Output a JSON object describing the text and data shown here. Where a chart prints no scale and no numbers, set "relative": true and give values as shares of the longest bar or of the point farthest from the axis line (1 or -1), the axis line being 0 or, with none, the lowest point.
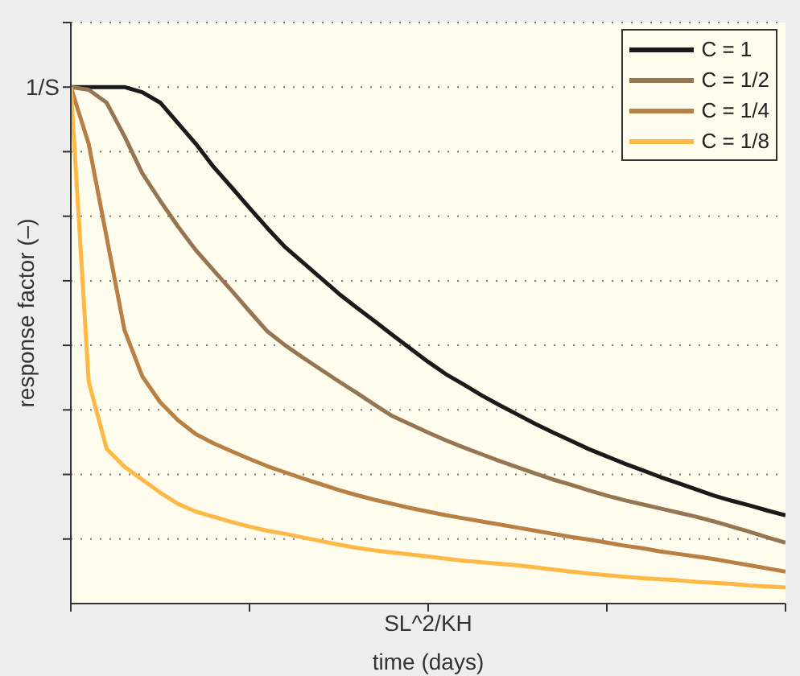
{
  "chart_data": {
    "type": "line",
    "relative": true,
    "xlabel": "time (days)",
    "ylabel": "response factor (–)",
    "annotations": [
      "1/S",
      "SL^2/KH"
    ],
    "grid": "y",
    "legend": "top right",
    "marker": "none",
    "line_style": "solid",
    "categories": [
      null,
      null,
      null,
      null,
      null,
      null,
      null,
      null,
      null,
      null,
      null,
      null,
      null,
      null,
      null,
      null,
      null,
      null,
      null,
      null,
      null,
      null,
      null,
      null,
      null,
      null,
      null,
      null,
      null,
      null,
      null,
      null,
      null,
      null,
      null,
      null,
      null,
      null,
      null,
      null,
      null
    ],
    "series": [
      {
        "name": "C = 1",
        "color": "#1a1a1a",
        "values": [
          1,
          1,
          1,
          1,
          0.99,
          0.97,
          0.93,
          0.89,
          0.845,
          0.806,
          0.766,
          0.727,
          0.69,
          0.66,
          0.63,
          0.6,
          0.573,
          0.547,
          0.52,
          0.494,
          0.468,
          0.444,
          0.424,
          0.403,
          0.384,
          0.366,
          0.348,
          0.331,
          0.315,
          0.299,
          0.285,
          0.271,
          0.258,
          0.245,
          0.233,
          0.221,
          0.209,
          0.199,
          0.19,
          0.18,
          0.171
        ]
      },
      {
        "name": "C = 1/2",
        "color": "#957552",
        "values": [
          1,
          0.995,
          0.97,
          0.905,
          0.833,
          0.78,
          0.73,
          0.684,
          0.645,
          0.606,
          0.566,
          0.527,
          0.5,
          0.476,
          0.453,
          0.43,
          0.408,
          0.385,
          0.363,
          0.347,
          0.331,
          0.316,
          0.302,
          0.289,
          0.276,
          0.264,
          0.252,
          0.24,
          0.23,
          0.219,
          0.209,
          0.2,
          0.192,
          0.184,
          0.176,
          0.168,
          0.159,
          0.149,
          0.139,
          0.128,
          0.118
        ]
      },
      {
        "name": "C = 1/4",
        "color": "#b88045",
        "values": [
          1,
          0.89,
          0.71,
          0.53,
          0.44,
          0.39,
          0.355,
          0.328,
          0.31,
          0.295,
          0.28,
          0.266,
          0.254,
          0.242,
          0.231,
          0.22,
          0.21,
          0.201,
          0.193,
          0.185,
          0.178,
          0.171,
          0.165,
          0.159,
          0.153,
          0.147,
          0.141,
          0.135,
          0.129,
          0.124,
          0.118,
          0.112,
          0.107,
          0.101,
          0.096,
          0.091,
          0.086,
          0.08,
          0.074,
          0.068,
          0.062
        ]
      },
      {
        "name": "C = 1/8",
        "color": "#fdb845",
        "values": [
          1,
          0.43,
          0.3,
          0.265,
          0.24,
          0.215,
          0.193,
          0.178,
          0.168,
          0.158,
          0.149,
          0.141,
          0.135,
          0.128,
          0.121,
          0.114,
          0.108,
          0.103,
          0.099,
          0.095,
          0.091,
          0.087,
          0.083,
          0.08,
          0.077,
          0.074,
          0.07,
          0.066,
          0.062,
          0.058,
          0.055,
          0.052,
          0.049,
          0.047,
          0.045,
          0.042,
          0.04,
          0.038,
          0.035,
          0.033,
          0.031
        ]
      }
    ]
  }
}
